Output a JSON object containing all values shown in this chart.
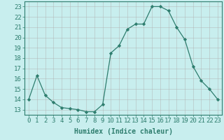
{
  "x": [
    0,
    1,
    2,
    3,
    4,
    5,
    6,
    7,
    8,
    9,
    10,
    11,
    12,
    13,
    14,
    15,
    16,
    17,
    18,
    19,
    20,
    21,
    22,
    23
  ],
  "y": [
    14,
    16.3,
    14.4,
    13.7,
    13.2,
    13.1,
    13.0,
    12.8,
    12.8,
    13.5,
    18.5,
    19.2,
    20.8,
    21.3,
    21.3,
    23.0,
    23.0,
    22.6,
    21.0,
    19.8,
    17.2,
    15.8,
    15.0,
    14.0
  ],
  "line_color": "#2e7d6e",
  "marker": "D",
  "marker_size": 2.2,
  "bg_color": "#c8eeee",
  "grid_color": "#b0b0b0",
  "xlabel": "Humidex (Indice chaleur)",
  "yticks": [
    13,
    14,
    15,
    16,
    17,
    18,
    19,
    20,
    21,
    22,
    23
  ],
  "xlim": [
    -0.5,
    23.5
  ],
  "ylim": [
    12.5,
    23.5
  ],
  "xlabel_fontsize": 7,
  "tick_fontsize": 6.5
}
